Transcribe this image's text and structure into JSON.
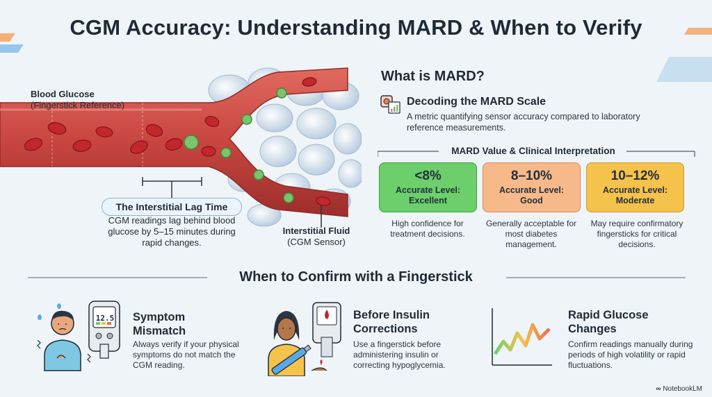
{
  "title": "CGM Accuracy: Understanding MARD & When to Verify",
  "diagram": {
    "blood_label_bold": "Blood Glucose",
    "blood_label_sub": "(Fingerstick Reference)",
    "lag_title": "The Interstitial Lag Time",
    "lag_desc": "CGM readings lag behind blood glucose by 5–15 minutes during rapid changes.",
    "fluid_label_bold": "Interstitial Fluid",
    "fluid_label_sub": "(CGM Sensor)"
  },
  "mard": {
    "heading": "What is MARD?",
    "subheading": "Decoding the MARD Scale",
    "description": "A metric quantifying sensor accuracy compared to laboratory reference measurements.",
    "table_title": "MARD Value & Clinical Interpretation",
    "levels": [
      {
        "value": "<8%",
        "level": "Accurate Level: Excellent",
        "description": "High confidence for treatment decisions.",
        "color": "#6ccf6c"
      },
      {
        "value": "8–10%",
        "level": "Accurate Level: Good",
        "description": "Generally acceptable for most diabetes management.",
        "color": "#f7b98a"
      },
      {
        "value": "10–12%",
        "level": "Accurate Level: Moderate",
        "description": "May require confirmatory fingersticks for critical decisions.",
        "color": "#f5c24c"
      }
    ]
  },
  "fingerstick": {
    "heading": "When to Confirm with a Fingerstick",
    "meter_reading": "12.5",
    "items": [
      {
        "title": "Symptom Mismatch",
        "description": "Always verify if your physical symptoms do not match the CGM reading.",
        "icon": "person-glucose-meter-icon"
      },
      {
        "title": "Before Insulin Corrections",
        "description": "Use a fingerstick before administering insulin or correcting hypoglycemia.",
        "icon": "insulin-pen-icon"
      },
      {
        "title": "Rapid Glucose Changes",
        "description": "Confirm readings manually during periods of high volatility or rapid fluctuations.",
        "icon": "zigzag-chart-icon"
      }
    ]
  },
  "brand": "NotebookLM",
  "colors": {
    "excellent": "#6ccf6c",
    "good": "#f7b98a",
    "moderate": "#f5c24c",
    "vessel": "#c8453f",
    "glucose": "#7cc36b"
  }
}
